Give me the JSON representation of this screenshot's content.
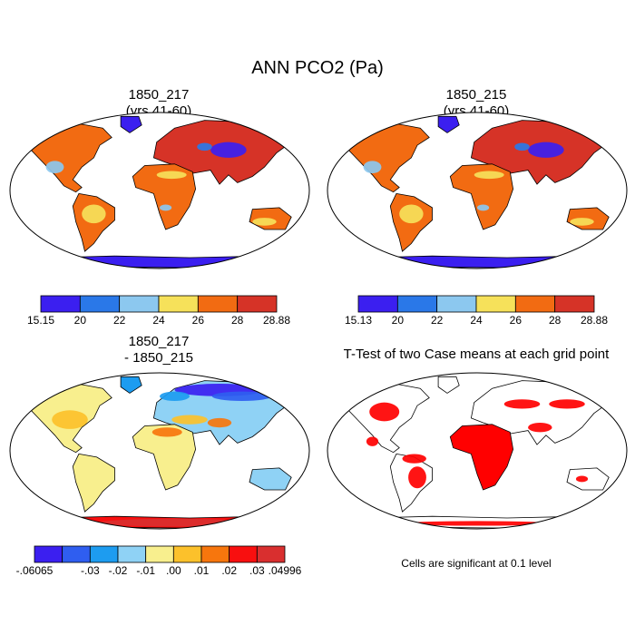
{
  "figure": {
    "title": "ANN PCO2 (Pa)"
  },
  "panels": {
    "top_left": {
      "title_line1": "1850_217",
      "title_line2": "(yrs 41-60)"
    },
    "top_right": {
      "title_line1": "1850_215",
      "title_line2": "(yrs 41-60)"
    },
    "bottom_left": {
      "title_line1": "1850_217",
      "title_line2": "- 1850_215"
    },
    "bottom_right": {
      "title": "T-Test of two Case means at each grid point"
    }
  },
  "colorbars": {
    "top_left": {
      "colors": [
        "#3b1ff0",
        "#2a78e8",
        "#8cc8ef",
        "#f6e15a",
        "#f26b12",
        "#d63327"
      ],
      "labels": [
        "15.15",
        "20",
        "22",
        "24",
        "26",
        "28",
        "28.88"
      ]
    },
    "top_right": {
      "colors": [
        "#3b1ff0",
        "#2a78e8",
        "#8cc8ef",
        "#f6e15a",
        "#f26b12",
        "#d63327"
      ],
      "labels": [
        "15.13",
        "20",
        "22",
        "24",
        "26",
        "28",
        "28.88"
      ]
    },
    "bottom_left": {
      "colors": [
        "#3b1ff0",
        "#2f5ef0",
        "#1d9cf0",
        "#8fd2f5",
        "#f8ef8e",
        "#fcc12b",
        "#f7760d",
        "#f80f0f",
        "#d92f2f"
      ],
      "labels": [
        "-.06065",
        "-.03",
        "-.02",
        "-.01",
        ".00",
        ".01",
        ".02",
        ".03",
        ".04996"
      ]
    }
  },
  "significance": {
    "note": "Cells are significant at 0.1 level",
    "color": "#ff0000"
  }
}
